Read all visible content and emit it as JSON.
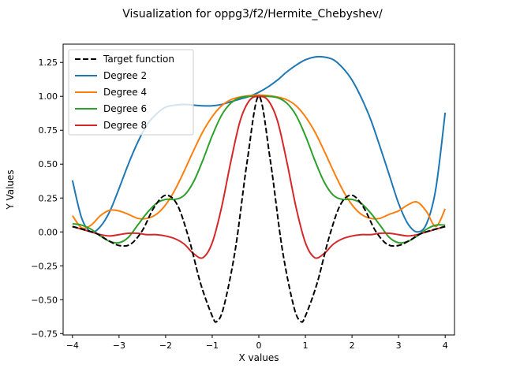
{
  "chart_data": {
    "type": "line",
    "title": "Visualization for oppg3/f2/Hermite_Chebyshev/",
    "xlabel": "X values",
    "ylabel": "Y Values",
    "xlim": [
      -4.2,
      4.2
    ],
    "ylim": [
      -0.76,
      1.385
    ],
    "xticks": [
      -4,
      -3,
      -2,
      -1,
      0,
      1,
      2,
      3,
      4
    ],
    "xtick_labels": [
      "−4",
      "−3",
      "−2",
      "−1",
      "0",
      "1",
      "2",
      "3",
      "4"
    ],
    "yticks": [
      -0.75,
      -0.5,
      -0.25,
      0.0,
      0.25,
      0.5,
      0.75,
      1.0,
      1.25
    ],
    "ytick_labels": [
      "−0.75",
      "−0.50",
      "−0.25",
      "0.00",
      "0.25",
      "0.50",
      "0.75",
      "1.00",
      "1.25"
    ],
    "grid": false,
    "legend_position": "upper-left",
    "series": [
      {
        "name": "Target function",
        "color": "#000000",
        "style": "dashed",
        "x": [
          -4,
          -3.5,
          -3.25,
          -3,
          -2.75,
          -2.5,
          -2.25,
          -2,
          -1.75,
          -1.5,
          -1.25,
          -1,
          -0.9,
          -0.75,
          -0.5,
          -0.25,
          0,
          0.25,
          0.5,
          0.75,
          0.9,
          1,
          1.25,
          1.5,
          1.75,
          2,
          2.25,
          2.5,
          2.75,
          3,
          3.25,
          3.5,
          4
        ],
        "y": [
          0.04,
          -0.01,
          -0.06,
          -0.1,
          -0.09,
          0.01,
          0.18,
          0.27,
          0.2,
          -0.05,
          -0.38,
          -0.62,
          -0.66,
          -0.55,
          -0.12,
          0.52,
          1.0,
          0.52,
          -0.12,
          -0.55,
          -0.66,
          -0.62,
          -0.38,
          -0.05,
          0.2,
          0.27,
          0.18,
          0.01,
          -0.09,
          -0.1,
          -0.06,
          -0.01,
          0.04
        ]
      },
      {
        "name": "Degree 2",
        "color": "#1f77b4",
        "style": "solid",
        "x": [
          -4,
          -3.8,
          -3.6,
          -3.4,
          -3.2,
          -3,
          -2.8,
          -2.6,
          -2.4,
          -2.2,
          -2,
          -1.8,
          -1.6,
          -1.4,
          -1.2,
          -1,
          -0.8,
          -0.6,
          -0.4,
          -0.2,
          0,
          0.2,
          0.4,
          0.6,
          0.8,
          1,
          1.2,
          1.4,
          1.6,
          1.8,
          2,
          2.2,
          2.4,
          2.6,
          2.8,
          3,
          3.2,
          3.4,
          3.6,
          3.8,
          4
        ],
        "y": [
          0.38,
          0.1,
          0.0,
          0.04,
          0.15,
          0.32,
          0.5,
          0.66,
          0.79,
          0.87,
          0.92,
          0.935,
          0.94,
          0.935,
          0.93,
          0.93,
          0.94,
          0.96,
          0.98,
          1.0,
          1.03,
          1.07,
          1.12,
          1.18,
          1.23,
          1.27,
          1.29,
          1.29,
          1.27,
          1.21,
          1.12,
          0.99,
          0.83,
          0.63,
          0.42,
          0.21,
          0.06,
          0.0,
          0.06,
          0.32,
          0.88
        ]
      },
      {
        "name": "Degree 4",
        "color": "#ff7f0e",
        "style": "solid",
        "x": [
          -4,
          -3.8,
          -3.6,
          -3.4,
          -3.2,
          -3,
          -2.8,
          -2.6,
          -2.4,
          -2.2,
          -2,
          -1.8,
          -1.6,
          -1.4,
          -1.2,
          -1,
          -0.8,
          -0.6,
          -0.4,
          -0.2,
          0,
          0.2,
          0.4,
          0.6,
          0.8,
          1,
          1.2,
          1.4,
          1.6,
          1.8,
          2,
          2.2,
          2.4,
          2.6,
          2.8,
          3,
          3.2,
          3.4,
          3.6,
          3.8,
          4
        ],
        "y": [
          0.12,
          0.03,
          0.05,
          0.12,
          0.16,
          0.155,
          0.13,
          0.1,
          0.1,
          0.13,
          0.2,
          0.31,
          0.45,
          0.6,
          0.74,
          0.85,
          0.93,
          0.975,
          0.995,
          1.005,
          1.01,
          1.005,
          0.995,
          0.975,
          0.93,
          0.85,
          0.74,
          0.6,
          0.45,
          0.31,
          0.2,
          0.13,
          0.1,
          0.1,
          0.13,
          0.155,
          0.2,
          0.22,
          0.15,
          0.04,
          0.17
        ]
      },
      {
        "name": "Degree 6",
        "color": "#2ca02c",
        "style": "solid",
        "x": [
          -4,
          -3.8,
          -3.6,
          -3.4,
          -3.2,
          -3,
          -2.8,
          -2.6,
          -2.4,
          -2.2,
          -2,
          -1.8,
          -1.6,
          -1.4,
          -1.2,
          -1,
          -0.8,
          -0.6,
          -0.4,
          -0.2,
          0,
          0.2,
          0.4,
          0.6,
          0.8,
          1,
          1.2,
          1.4,
          1.6,
          1.8,
          2,
          2.2,
          2.4,
          2.6,
          2.8,
          3,
          3.2,
          3.4,
          3.6,
          3.8,
          4
        ],
        "y": [
          0.06,
          0.05,
          0.02,
          -0.03,
          -0.07,
          -0.08,
          -0.04,
          0.05,
          0.14,
          0.21,
          0.24,
          0.24,
          0.27,
          0.37,
          0.53,
          0.71,
          0.86,
          0.95,
          0.99,
          1.0,
          1.0,
          1.0,
          0.99,
          0.95,
          0.86,
          0.71,
          0.53,
          0.37,
          0.27,
          0.24,
          0.24,
          0.21,
          0.14,
          0.05,
          -0.04,
          -0.08,
          -0.07,
          -0.03,
          0.02,
          0.05,
          0.05
        ]
      },
      {
        "name": "Degree 8",
        "color": "#d62728",
        "style": "solid",
        "x": [
          -4,
          -3.8,
          -3.6,
          -3.4,
          -3.2,
          -3,
          -2.8,
          -2.6,
          -2.4,
          -2.2,
          -2,
          -1.8,
          -1.6,
          -1.4,
          -1.2,
          -1,
          -0.8,
          -0.6,
          -0.4,
          -0.2,
          0,
          0.2,
          0.4,
          0.6,
          0.8,
          1,
          1.2,
          1.4,
          1.6,
          1.8,
          2,
          2.2,
          2.4,
          2.6,
          2.8,
          3,
          3.2,
          3.4,
          3.6,
          3.8,
          4
        ],
        "y": [
          0.04,
          0.02,
          0.0,
          -0.02,
          -0.03,
          -0.02,
          -0.01,
          -0.01,
          -0.02,
          -0.02,
          -0.03,
          -0.05,
          -0.09,
          -0.16,
          -0.19,
          -0.08,
          0.18,
          0.52,
          0.82,
          0.97,
          1.0,
          0.97,
          0.82,
          0.52,
          0.18,
          -0.08,
          -0.19,
          -0.16,
          -0.09,
          -0.05,
          -0.03,
          -0.02,
          -0.02,
          -0.01,
          -0.01,
          -0.02,
          -0.03,
          -0.02,
          0.0,
          0.02,
          0.04
        ]
      }
    ]
  }
}
